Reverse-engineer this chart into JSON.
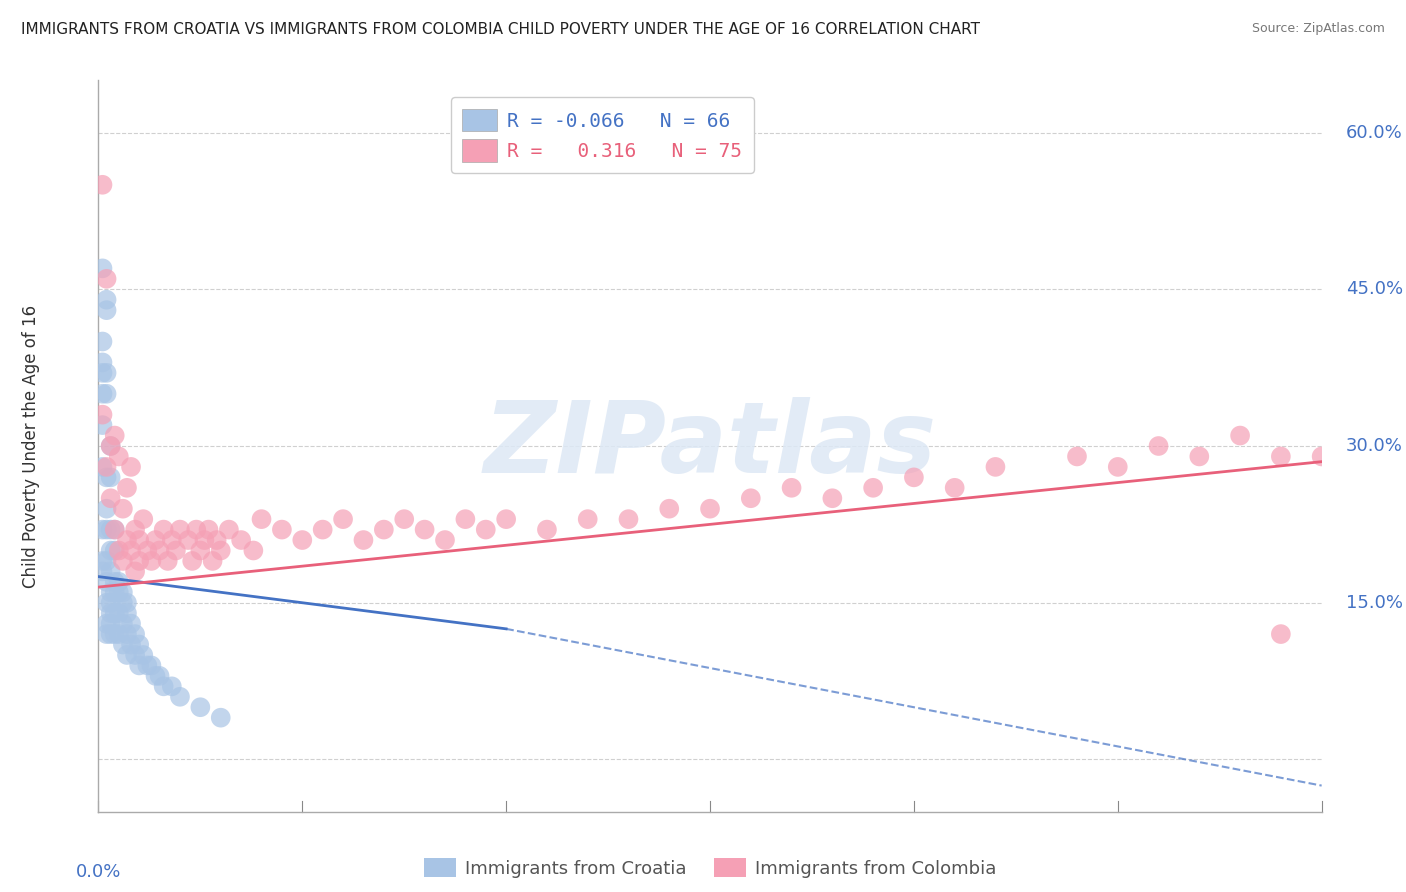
{
  "title": "IMMIGRANTS FROM CROATIA VS IMMIGRANTS FROM COLOMBIA CHILD POVERTY UNDER THE AGE OF 16 CORRELATION CHART",
  "source": "Source: ZipAtlas.com",
  "ylabel": "Child Poverty Under the Age of 16",
  "r_croatia": -0.066,
  "n_croatia": 66,
  "r_colombia": 0.316,
  "n_colombia": 75,
  "croatia_color": "#a8c4e5",
  "colombia_color": "#f5a0b5",
  "trend_croatia_color": "#4472c4",
  "trend_colombia_color": "#e8607a",
  "background_color": "#ffffff",
  "grid_color": "#d0d0d0",
  "axis_label_color": "#4472c4",
  "xlim": [
    0.0,
    0.3
  ],
  "ylim": [
    -0.05,
    0.65
  ],
  "yticks": [
    0.0,
    0.15,
    0.3,
    0.45,
    0.6
  ],
  "ytick_labels": [
    "",
    "15.0%",
    "30.0%",
    "45.0%",
    "60.0%"
  ],
  "croatia_x": [
    0.001,
    0.001,
    0.001,
    0.001,
    0.001,
    0.001,
    0.001,
    0.001,
    0.001,
    0.001,
    0.002,
    0.002,
    0.002,
    0.002,
    0.002,
    0.002,
    0.002,
    0.002,
    0.002,
    0.002,
    0.002,
    0.002,
    0.003,
    0.003,
    0.003,
    0.003,
    0.003,
    0.003,
    0.003,
    0.003,
    0.003,
    0.003,
    0.004,
    0.004,
    0.004,
    0.004,
    0.004,
    0.004,
    0.005,
    0.005,
    0.005,
    0.005,
    0.006,
    0.006,
    0.006,
    0.006,
    0.007,
    0.007,
    0.007,
    0.007,
    0.008,
    0.008,
    0.009,
    0.009,
    0.01,
    0.01,
    0.011,
    0.012,
    0.013,
    0.014,
    0.015,
    0.016,
    0.018,
    0.02,
    0.025,
    0.03
  ],
  "croatia_y": [
    0.47,
    0.4,
    0.38,
    0.37,
    0.35,
    0.32,
    0.28,
    0.22,
    0.19,
    0.18,
    0.44,
    0.43,
    0.37,
    0.35,
    0.27,
    0.24,
    0.22,
    0.19,
    0.17,
    0.15,
    0.13,
    0.12,
    0.3,
    0.27,
    0.22,
    0.2,
    0.18,
    0.16,
    0.15,
    0.14,
    0.13,
    0.12,
    0.22,
    0.2,
    0.17,
    0.16,
    0.14,
    0.12,
    0.17,
    0.16,
    0.14,
    0.12,
    0.16,
    0.15,
    0.13,
    0.11,
    0.15,
    0.14,
    0.12,
    0.1,
    0.13,
    0.11,
    0.12,
    0.1,
    0.11,
    0.09,
    0.1,
    0.09,
    0.09,
    0.08,
    0.08,
    0.07,
    0.07,
    0.06,
    0.05,
    0.04
  ],
  "colombia_x": [
    0.001,
    0.001,
    0.002,
    0.002,
    0.003,
    0.003,
    0.004,
    0.004,
    0.005,
    0.005,
    0.006,
    0.006,
    0.007,
    0.007,
    0.008,
    0.008,
    0.009,
    0.009,
    0.01,
    0.01,
    0.011,
    0.012,
    0.013,
    0.014,
    0.015,
    0.016,
    0.017,
    0.018,
    0.019,
    0.02,
    0.022,
    0.023,
    0.024,
    0.025,
    0.026,
    0.027,
    0.028,
    0.029,
    0.03,
    0.032,
    0.035,
    0.038,
    0.04,
    0.045,
    0.05,
    0.055,
    0.06,
    0.065,
    0.07,
    0.075,
    0.08,
    0.085,
    0.09,
    0.095,
    0.1,
    0.11,
    0.12,
    0.13,
    0.14,
    0.15,
    0.16,
    0.17,
    0.18,
    0.19,
    0.2,
    0.21,
    0.22,
    0.24,
    0.25,
    0.26,
    0.27,
    0.28,
    0.29,
    0.3,
    0.29
  ],
  "colombia_y": [
    0.55,
    0.33,
    0.46,
    0.28,
    0.3,
    0.25,
    0.31,
    0.22,
    0.29,
    0.2,
    0.24,
    0.19,
    0.26,
    0.21,
    0.28,
    0.2,
    0.22,
    0.18,
    0.21,
    0.19,
    0.23,
    0.2,
    0.19,
    0.21,
    0.2,
    0.22,
    0.19,
    0.21,
    0.2,
    0.22,
    0.21,
    0.19,
    0.22,
    0.2,
    0.21,
    0.22,
    0.19,
    0.21,
    0.2,
    0.22,
    0.21,
    0.2,
    0.23,
    0.22,
    0.21,
    0.22,
    0.23,
    0.21,
    0.22,
    0.23,
    0.22,
    0.21,
    0.23,
    0.22,
    0.23,
    0.22,
    0.23,
    0.23,
    0.24,
    0.24,
    0.25,
    0.26,
    0.25,
    0.26,
    0.27,
    0.26,
    0.28,
    0.29,
    0.28,
    0.3,
    0.29,
    0.31,
    0.29,
    0.29,
    0.12
  ],
  "trend_cr_x0": 0.0,
  "trend_cr_y0": 0.175,
  "trend_cr_x1": 0.1,
  "trend_cr_y1": 0.125,
  "trend_cr_dash_x1": 0.3,
  "trend_cr_dash_y1": -0.025,
  "trend_co_x0": 0.0,
  "trend_co_y0": 0.165,
  "trend_co_x1": 0.3,
  "trend_co_y1": 0.285,
  "watermark_text": "ZIPatlas",
  "legend_entries": [
    "R = -0.066   N = 66",
    "R =   0.316   N = 75"
  ],
  "bottom_legend": [
    "Immigrants from Croatia",
    "Immigrants from Colombia"
  ]
}
